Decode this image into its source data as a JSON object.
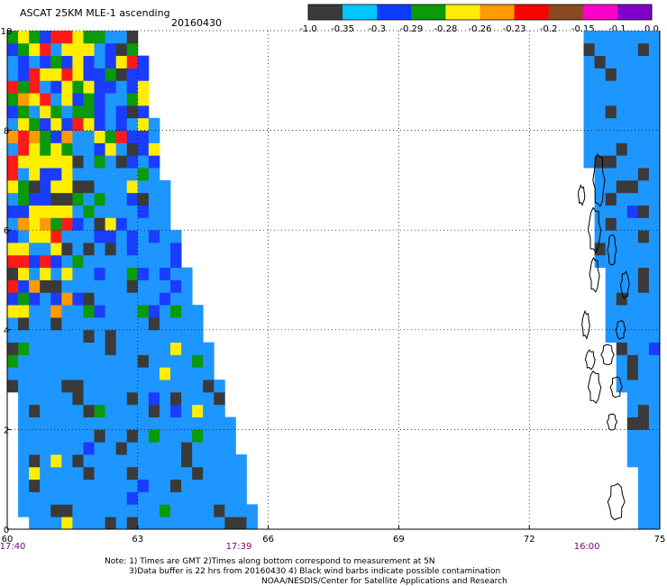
{
  "chart_data": {
    "type": "heatmap",
    "title": "ASCAT 25KM MLE-1 ascending",
    "date": "20160430",
    "colorbar": {
      "tick_labels": [
        "-1.0",
        "-0.35",
        "-0.3",
        "-0.29",
        "-0.28",
        "-0.26",
        "-0.23",
        "-0.2",
        "-0.15",
        "-0.1",
        "0.0"
      ],
      "colors": [
        "#3a3a3a",
        "#00c8ff",
        "#0a3cff",
        "#0a9a0a",
        "#ffee00",
        "#ff9a00",
        "#ff0000",
        "#8a4a22",
        "#ff00cc",
        "#8000c8"
      ]
    },
    "x_ticks": [
      "60",
      "63",
      "66",
      "69",
      "72",
      "75"
    ],
    "y_ticks": [
      "0",
      "2",
      "4",
      "6",
      "8",
      "10"
    ],
    "xlim": [
      60,
      75
    ],
    "ylim": [
      0,
      10
    ],
    "time_labels": [
      {
        "text": "17:40",
        "x": 60
      },
      {
        "text": "17:39",
        "x": 65.2
      },
      {
        "text": "16:00",
        "x": 73.2
      }
    ],
    "grid": true,
    "cell_deg": 0.25,
    "swaths": [
      {
        "segments": [
          [
            0,
            60.4,
            65.8
          ],
          [
            1,
            60.3,
            65.5
          ],
          [
            2,
            60.2,
            65.2
          ],
          [
            4,
            60.0,
            64.5
          ],
          [
            6,
            60.0,
            63.9
          ],
          [
            8,
            60.0,
            63.4
          ],
          [
            10,
            60.0,
            63.0
          ]
        ]
      },
      {
        "segments": [
          [
            0,
            74.5,
            75
          ],
          [
            2,
            74.3,
            75
          ],
          [
            4,
            73.8,
            75
          ],
          [
            6,
            73.5,
            75
          ],
          [
            8,
            73.3,
            75
          ],
          [
            10,
            73.2,
            75
          ]
        ]
      }
    ],
    "regions": [
      {
        "x0": 60.0,
        "x1": 61.9,
        "y0": 8.0,
        "y1": 10.0,
        "weights": {
          "yellow": 0.26,
          "blue": 0.26,
          "green": 0.14,
          "red": 0.1,
          "orange": 0.06,
          "lightblue": 0.14,
          "gray": 0.04
        }
      },
      {
        "x0": 61.9,
        "x1": 63.6,
        "y0": 7.6,
        "y1": 10.0,
        "weights": {
          "blue": 0.34,
          "lightblue": 0.28,
          "yellow": 0.12,
          "green": 0.12,
          "red": 0.04,
          "gray": 0.1
        }
      },
      {
        "x0": 60.0,
        "x1": 61.5,
        "y0": 4.3,
        "y1": 8.0,
        "weights": {
          "lightblue": 0.24,
          "yellow": 0.2,
          "blue": 0.2,
          "green": 0.1,
          "red": 0.12,
          "orange": 0.06,
          "magenta": 0.02,
          "gray": 0.06
        }
      },
      {
        "x0": 61.5,
        "x1": 64.3,
        "y0": 4.3,
        "y1": 7.6,
        "weights": {
          "lightblue": 0.74,
          "blue": 0.1,
          "gray": 0.08,
          "green": 0.05,
          "yellow": 0.03
        }
      },
      {
        "x0": 60.0,
        "x1": 66.0,
        "y0": 0.0,
        "y1": 4.3,
        "weights": {
          "lightblue": 0.82,
          "gray": 0.12,
          "blue": 0.03,
          "green": 0.02,
          "yellow": 0.01
        }
      },
      {
        "x0": 72.9,
        "x1": 75.0,
        "y0": 0.0,
        "y1": 10.0,
        "weights": {
          "lightblue": 0.86,
          "gray": 0.12,
          "blue": 0.02
        }
      }
    ],
    "islands": [
      {
        "x": 73.6,
        "y": 7.0,
        "rx": 0.12,
        "ry": 0.5
      },
      {
        "x": 73.2,
        "y": 6.7,
        "rx": 0.07,
        "ry": 0.18
      },
      {
        "x": 73.5,
        "y": 6.0,
        "rx": 0.13,
        "ry": 0.42
      },
      {
        "x": 73.9,
        "y": 5.6,
        "rx": 0.09,
        "ry": 0.3
      },
      {
        "x": 73.5,
        "y": 5.1,
        "rx": 0.1,
        "ry": 0.32
      },
      {
        "x": 74.2,
        "y": 4.9,
        "rx": 0.09,
        "ry": 0.25
      },
      {
        "x": 73.3,
        "y": 4.1,
        "rx": 0.08,
        "ry": 0.25
      },
      {
        "x": 73.8,
        "y": 3.5,
        "rx": 0.13,
        "ry": 0.2
      },
      {
        "x": 74.1,
        "y": 4.0,
        "rx": 0.1,
        "ry": 0.18
      },
      {
        "x": 73.4,
        "y": 3.4,
        "rx": 0.1,
        "ry": 0.18
      },
      {
        "x": 73.5,
        "y": 2.85,
        "rx": 0.13,
        "ry": 0.3
      },
      {
        "x": 74.0,
        "y": 2.85,
        "rx": 0.12,
        "ry": 0.2
      },
      {
        "x": 73.9,
        "y": 2.15,
        "rx": 0.1,
        "ry": 0.16
      },
      {
        "x": 74.0,
        "y": 0.55,
        "rx": 0.17,
        "ry": 0.35
      }
    ],
    "notes": [
      "Note: 1) Times are GMT 2)Times along bottom correspond to measurement at 5N",
      "3)Data buffer is 22 hrs from 20160430 4) Black wind barbs indicate possible contamination",
      "NOAA/NESDIS/Center for Satellite Applications and Research"
    ]
  }
}
